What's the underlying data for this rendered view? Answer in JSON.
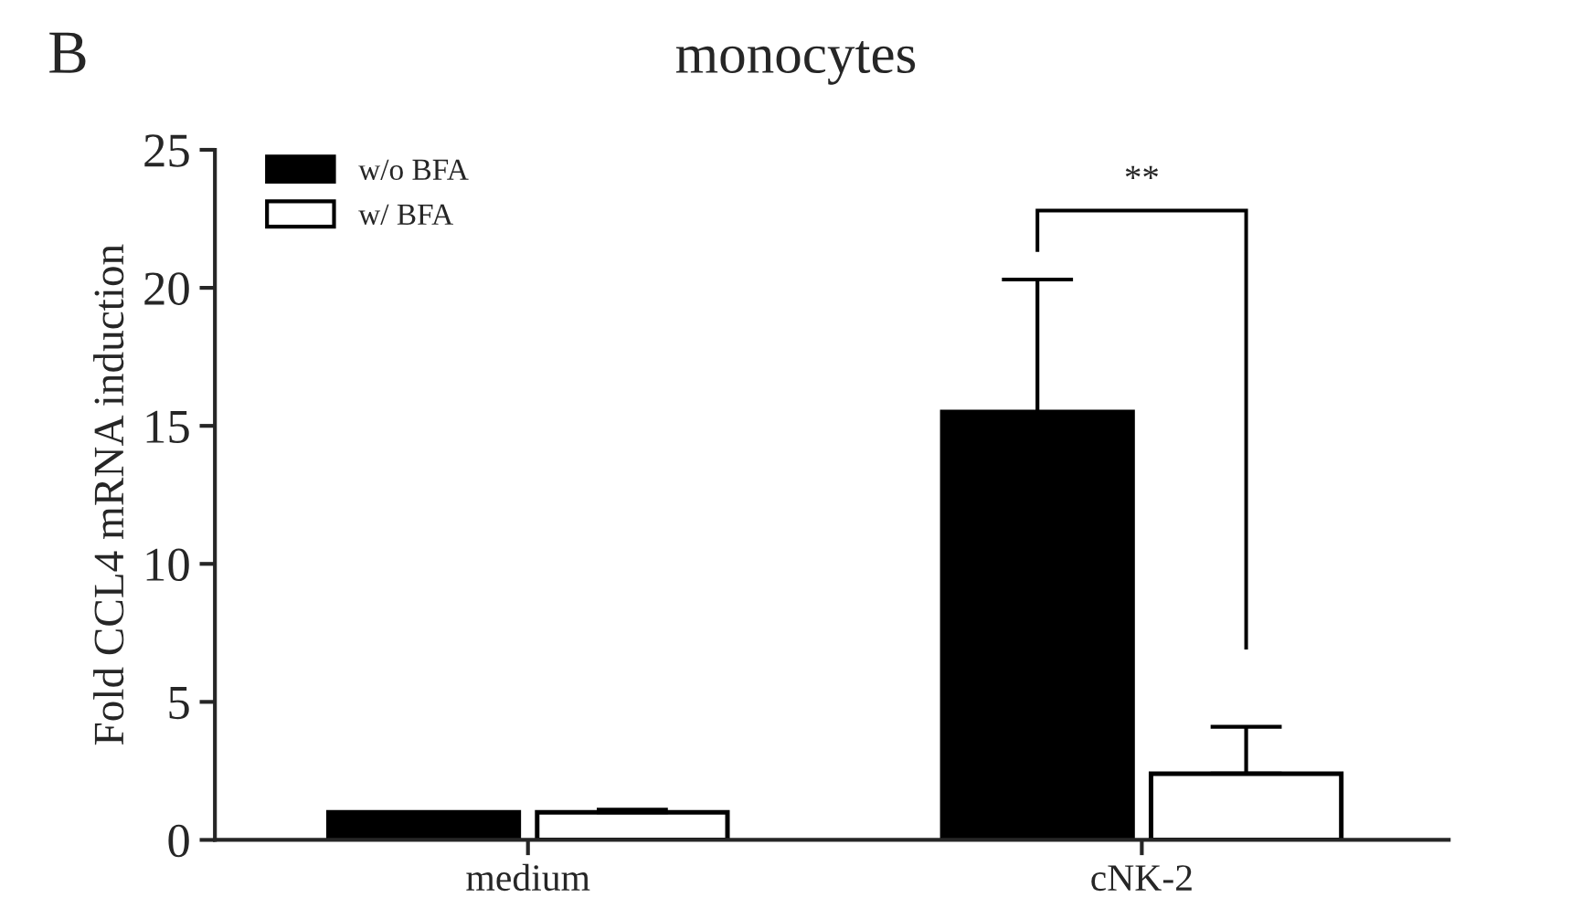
{
  "chart_data": {
    "type": "bar",
    "title": "monocytes",
    "ylabel": "Fold CCL4 mRNA induction",
    "categories": [
      "medium",
      "cNK-2"
    ],
    "series": [
      {
        "name": "w/o BFA",
        "color": "#000000",
        "values": [
          1.0,
          15.5
        ],
        "errors": [
          null,
          [
            15.5,
            20.3
          ]
        ]
      },
      {
        "name": "w/ BFA",
        "color": "#ffffff",
        "values": [
          1.0,
          2.4
        ],
        "errors": [
          [
            1.0,
            1.1
          ],
          [
            2.4,
            4.1
          ]
        ]
      }
    ],
    "ylim": [
      0,
      25
    ],
    "yticks": [
      0,
      5,
      10,
      15,
      20,
      25
    ],
    "grid": false,
    "legend": "top left",
    "annotations": [
      "B",
      "**"
    ]
  }
}
